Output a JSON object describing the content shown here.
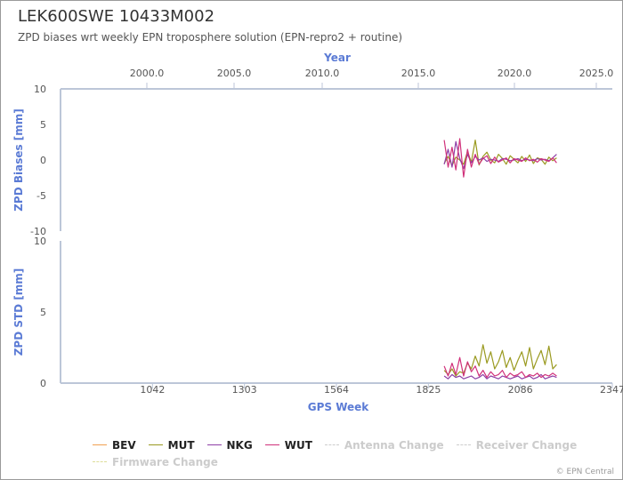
{
  "header": {
    "title": "LEK600SWE 10433M002",
    "subtitle": "ZPD biases wrt weekly EPN troposphere solution (EPN-repro2 + routine)"
  },
  "credit": "© EPN Central",
  "chart_data": [
    {
      "type": "line",
      "name": "bias-panel",
      "ylabel": "ZPD Biases [mm]",
      "ylim": [
        -10,
        10
      ],
      "yticks": [
        10,
        5,
        0,
        -5,
        -10
      ],
      "xlabel_top": "Year",
      "xticks_top": [
        "2000.0",
        "2005.0",
        "2010.0",
        "2015.0",
        "2020.0",
        "2025.0"
      ],
      "gps_week_range": [
        1870,
        2189
      ],
      "series": [
        {
          "name": "BEV",
          "color": "#f0a050",
          "values": []
        },
        {
          "name": "MUT",
          "color": "#9a9a20",
          "values": [
            -0.5,
            0.5,
            -0.8,
            0.4,
            0.0,
            -0.6,
            1.2,
            -0.3,
            2.8,
            -0.7,
            0.5,
            1.1,
            0.0,
            -0.4,
            0.8,
            0.2,
            -0.6,
            0.6,
            0.1,
            -0.4,
            0.5,
            -0.2,
            0.7,
            -0.5,
            0.3,
            0.1,
            -0.6,
            0.4,
            -0.1,
            0.3
          ]
        },
        {
          "name": "NKG",
          "color": "#8e3fa6",
          "values": [
            -0.6,
            1.5,
            -1.0,
            2.6,
            0.2,
            -1.2,
            0.8,
            -0.4,
            0.5,
            0.0,
            0.3,
            -0.2,
            0.1,
            0.0,
            -0.2,
            0.2,
            0.1,
            -0.1,
            0.0,
            0.2,
            -0.1,
            0.1,
            0.0,
            -0.1,
            0.2,
            0.0,
            0.1,
            -0.1,
            0.3,
            0.8
          ]
        },
        {
          "name": "WUT",
          "color": "#d0307a",
          "values": [
            2.8,
            -1.0,
            1.8,
            -1.4,
            3.0,
            -2.4,
            1.5,
            -1.0,
            0.8,
            -0.6,
            0.2,
            0.6,
            -0.5,
            0.4,
            -0.3,
            0.0,
            0.3,
            -0.4,
            0.2,
            0.0,
            -0.2,
            0.3,
            -0.1,
            0.1,
            -0.3,
            0.2,
            0.0,
            -0.2,
            0.3,
            -0.4
          ]
        }
      ]
    },
    {
      "type": "line",
      "name": "std-panel",
      "ylabel": "ZPD STD [mm]",
      "ylim": [
        0,
        10
      ],
      "yticks": [
        10,
        5,
        0
      ],
      "xlabel": "GPS Week",
      "xlim": [
        781,
        2347
      ],
      "xticks": [
        "1042",
        "1303",
        "1564",
        "1825",
        "2086",
        "2347"
      ],
      "series": [
        {
          "name": "BEV",
          "color": "#f0a050",
          "values": []
        },
        {
          "name": "MUT",
          "color": "#9a9a20",
          "values": [
            0.9,
            0.6,
            1.0,
            0.5,
            0.8,
            0.7,
            1.4,
            1.0,
            1.9,
            1.2,
            2.7,
            1.4,
            2.2,
            1.0,
            1.5,
            2.3,
            1.1,
            1.8,
            0.9,
            1.6,
            2.2,
            1.2,
            2.5,
            1.0,
            1.7,
            2.3,
            1.3,
            2.6,
            1.0,
            1.3
          ]
        },
        {
          "name": "NKG",
          "color": "#8e3fa6",
          "values": [
            0.5,
            0.3,
            0.6,
            0.4,
            0.5,
            0.3,
            0.4,
            0.5,
            0.3,
            0.4,
            0.6,
            0.3,
            0.5,
            0.4,
            0.3,
            0.5,
            0.4,
            0.3,
            0.4,
            0.5,
            0.3,
            0.4,
            0.5,
            0.3,
            0.4,
            0.6,
            0.3,
            0.4,
            0.5,
            0.4
          ]
        },
        {
          "name": "WUT",
          "color": "#d0307a",
          "values": [
            1.2,
            0.5,
            1.4,
            0.6,
            1.8,
            0.5,
            1.5,
            0.8,
            1.2,
            0.5,
            0.9,
            0.4,
            0.8,
            0.5,
            0.6,
            0.9,
            0.4,
            0.7,
            0.5,
            0.6,
            0.8,
            0.4,
            0.6,
            0.5,
            0.7,
            0.4,
            0.6,
            0.5,
            0.7,
            0.5
          ]
        }
      ]
    }
  ],
  "legend": [
    {
      "label": "BEV",
      "color": "#f0a050"
    },
    {
      "label": "MUT",
      "color": "#9a9a20"
    },
    {
      "label": "NKG",
      "color": "#8e3fa6"
    },
    {
      "label": "WUT",
      "color": "#d0307a"
    },
    {
      "label": "Antenna Change",
      "color": "#cccccc",
      "dim": true
    },
    {
      "label": "Receiver Change",
      "color": "#cccccc",
      "dim": true
    },
    {
      "label": "Firmware Change",
      "color": "#dddd99",
      "dim": true
    }
  ]
}
